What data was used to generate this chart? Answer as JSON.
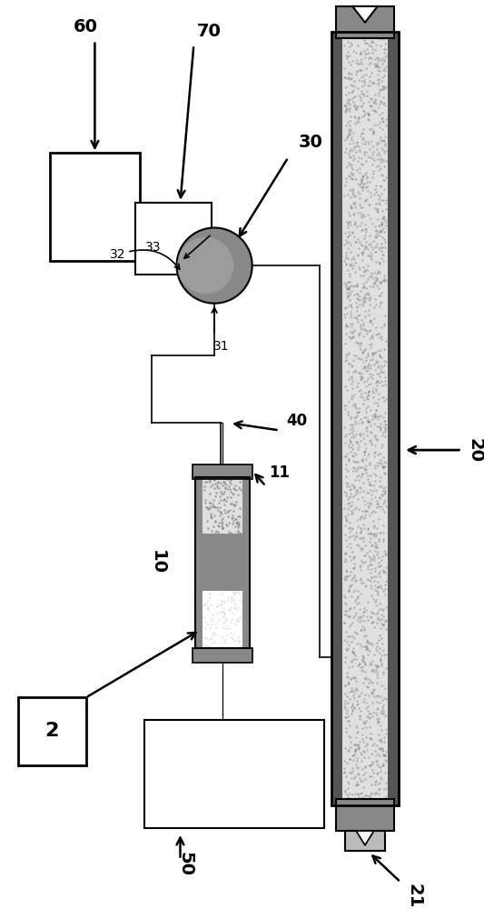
{
  "bg_color": "#ffffff",
  "dark_gray": "#555555",
  "mid_gray": "#888888",
  "light_gray": "#bbbbbb",
  "very_light_gray": "#e0e0e0",
  "box_edge": "#000000",
  "figw": 5.33,
  "figh": 10.0,
  "dpi": 100
}
